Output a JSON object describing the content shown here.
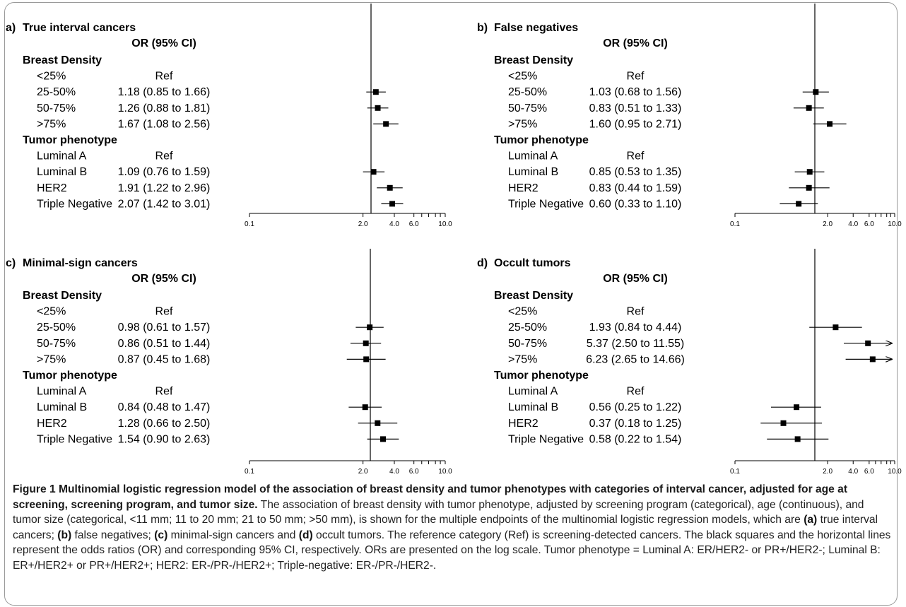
{
  "chart_data": [
    {
      "type": "forest",
      "panel_label": "a)",
      "title": "True interval cancers",
      "column_header": "OR (95% CI)",
      "xscale": "log",
      "xticks": [
        "0.1",
        "2.0",
        "4.0",
        "6.0",
        "10.0"
      ],
      "xlim": [
        0.1,
        10
      ],
      "reference_line": 1,
      "groups": [
        {
          "name": "Breast Density",
          "rows": [
            {
              "label": "<25%",
              "text": "Ref",
              "or": null,
              "lo": null,
              "hi": null
            },
            {
              "label": "25-50%",
              "text": "1.18 (0.85 to 1.66)",
              "or": 1.18,
              "lo": 0.85,
              "hi": 1.66
            },
            {
              "label": "50-75%",
              "text": "1.26 (0.88 to 1.81)",
              "or": 1.26,
              "lo": 0.88,
              "hi": 1.81
            },
            {
              "label": ">75%",
              "text": "1.67 (1.08 to 2.56)",
              "or": 1.67,
              "lo": 1.08,
              "hi": 2.56
            }
          ]
        },
        {
          "name": "Tumor phenotype",
          "rows": [
            {
              "label": "Luminal A",
              "text": "Ref",
              "or": null,
              "lo": null,
              "hi": null
            },
            {
              "label": "Luminal B",
              "text": "1.09 (0.76 to 1.59)",
              "or": 1.09,
              "lo": 0.76,
              "hi": 1.59
            },
            {
              "label": "HER2",
              "text": "1.91 (1.22 to 2.96)",
              "or": 1.91,
              "lo": 1.22,
              "hi": 2.96
            },
            {
              "label": "Triple Negative",
              "text": "2.07 (1.42 to 3.01)",
              "or": 2.07,
              "lo": 1.42,
              "hi": 3.01
            }
          ]
        }
      ]
    },
    {
      "type": "forest",
      "panel_label": "b)",
      "title": "False negatives",
      "column_header": "OR (95% CI)",
      "xscale": "log",
      "xticks": [
        "0.1",
        "2.0",
        "4.0",
        "6.0",
        "10.0"
      ],
      "xlim": [
        0.1,
        10
      ],
      "reference_line": 1,
      "groups": [
        {
          "name": "Breast Density",
          "rows": [
            {
              "label": "<25%",
              "text": "Ref",
              "or": null,
              "lo": null,
              "hi": null
            },
            {
              "label": "25-50%",
              "text": "1.03 (0.68 to 1.56)",
              "or": 1.03,
              "lo": 0.68,
              "hi": 1.56
            },
            {
              "label": "50-75%",
              "text": "0.83 (0.51 to 1.33)",
              "or": 0.83,
              "lo": 0.51,
              "hi": 1.33
            },
            {
              "label": ">75%",
              "text": "1.60 (0.95 to 2.71)",
              "or": 1.6,
              "lo": 0.95,
              "hi": 2.71
            }
          ]
        },
        {
          "name": "Tumor phenotype",
          "rows": [
            {
              "label": "Luminal A",
              "text": "Ref",
              "or": null,
              "lo": null,
              "hi": null
            },
            {
              "label": "Luminal B",
              "text": "0.85 (0.53 to 1.35)",
              "or": 0.85,
              "lo": 0.53,
              "hi": 1.35
            },
            {
              "label": "HER2",
              "text": "0.83 (0.44 to 1.59)",
              "or": 0.83,
              "lo": 0.44,
              "hi": 1.59
            },
            {
              "label": "Triple Negative",
              "text": "0.60 (0.33 to 1.10)",
              "or": 0.6,
              "lo": 0.33,
              "hi": 1.1
            }
          ]
        }
      ]
    },
    {
      "type": "forest",
      "panel_label": "c)",
      "title": "Minimal-sign cancers",
      "column_header": "OR (95% CI)",
      "xscale": "log",
      "xticks": [
        "0.1",
        "2.0",
        "4.0",
        "6.0",
        "10.0"
      ],
      "xlim": [
        0.1,
        10
      ],
      "reference_line": 1,
      "groups": [
        {
          "name": "Breast Density",
          "rows": [
            {
              "label": "<25%",
              "text": "Ref",
              "or": null,
              "lo": null,
              "hi": null
            },
            {
              "label": "25-50%",
              "text": "0.98 (0.61 to 1.57)",
              "or": 0.98,
              "lo": 0.61,
              "hi": 1.57
            },
            {
              "label": "50-75%",
              "text": "0.86 (0.51 to 1.44)",
              "or": 0.86,
              "lo": 0.51,
              "hi": 1.44
            },
            {
              "label": ">75%",
              "text": "0.87 (0.45 to 1.68)",
              "or": 0.87,
              "lo": 0.45,
              "hi": 1.68
            }
          ]
        },
        {
          "name": "Tumor phenotype",
          "rows": [
            {
              "label": "Luminal A",
              "text": "Ref",
              "or": null,
              "lo": null,
              "hi": null
            },
            {
              "label": "Luminal B",
              "text": "0.84 (0.48 to 1.47)",
              "or": 0.84,
              "lo": 0.48,
              "hi": 1.47
            },
            {
              "label": "HER2",
              "text": "1.28 (0.66 to 2.50)",
              "or": 1.28,
              "lo": 0.66,
              "hi": 2.5
            },
            {
              "label": "Triple Negative",
              "text": "1.54 (0.90 to 2.63)",
              "or": 1.54,
              "lo": 0.9,
              "hi": 2.63
            }
          ]
        }
      ]
    },
    {
      "type": "forest",
      "panel_label": "d)",
      "title": "Occult tumors",
      "column_header": "OR (95% CI)",
      "xscale": "log",
      "xticks": [
        "0.1",
        "2.0",
        "4.0",
        "6.0",
        "10.0"
      ],
      "xlim": [
        0.1,
        10
      ],
      "reference_line": 1,
      "groups": [
        {
          "name": "Breast Density",
          "rows": [
            {
              "label": "<25%",
              "text": "Ref",
              "or": null,
              "lo": null,
              "hi": null
            },
            {
              "label": "25-50%",
              "text": "1.93 (0.84 to 4.44)",
              "or": 1.93,
              "lo": 0.84,
              "hi": 4.44
            },
            {
              "label": "50-75%",
              "text": "5.37 (2.50 to 11.55)",
              "or": 5.37,
              "lo": 2.5,
              "hi": 11.55
            },
            {
              "label": ">75%",
              "text": "6.23 (2.65 to 14.66)",
              "or": 6.23,
              "lo": 2.65,
              "hi": 14.66
            }
          ]
        },
        {
          "name": "Tumor phenotype",
          "rows": [
            {
              "label": "Luminal A",
              "text": "Ref",
              "or": null,
              "lo": null,
              "hi": null
            },
            {
              "label": "Luminal B",
              "text": "0.56 (0.25 to 1.22)",
              "or": 0.56,
              "lo": 0.25,
              "hi": 1.22
            },
            {
              "label": "HER2",
              "text": "0.37 (0.18 to 1.25)",
              "or": 0.37,
              "lo": 0.18,
              "hi": 1.25
            },
            {
              "label": "Triple Negative",
              "text": "0.58 (0.22 to 1.54)",
              "or": 0.58,
              "lo": 0.22,
              "hi": 1.54
            }
          ]
        }
      ]
    }
  ],
  "caption": {
    "title": "Figure 1 Multinomial logistic regression model of the association of breast density and tumor phenotypes with categories of interval cancer, adjusted for age at screening, screening program, and tumor size.",
    "text1": " The association of breast density with tumor phenotype, adjusted by screening program (categorical), age (continuous), and tumor size (categorical, <11 mm; 11 to 20 mm; 21 to 50 mm; >50 mm), is shown for the multiple endpoints of the multinomial logistic regression models, which are ",
    "ref_a": "(a)",
    "text2": " true interval cancers; ",
    "ref_b": "(b)",
    "text3": " false negatives; ",
    "ref_c": "(c)",
    "text4": " minimal-sign cancers and ",
    "ref_d": "(d)",
    "text5": " occult tumors. The reference category (Ref) is screening-detected cancers. The black squares and the horizontal lines represent the odds ratios (OR) and corresponding 95% CI, respectively. ORs are presented on the log scale. Tumor phenotype = Luminal A: ER/HER2- or PR+/HER2-; Luminal B: ER+/HER2+ or PR+/HER2+; HER2: ER-/PR-/HER2+; Triple-negative: ER-/PR-/HER2-."
  }
}
